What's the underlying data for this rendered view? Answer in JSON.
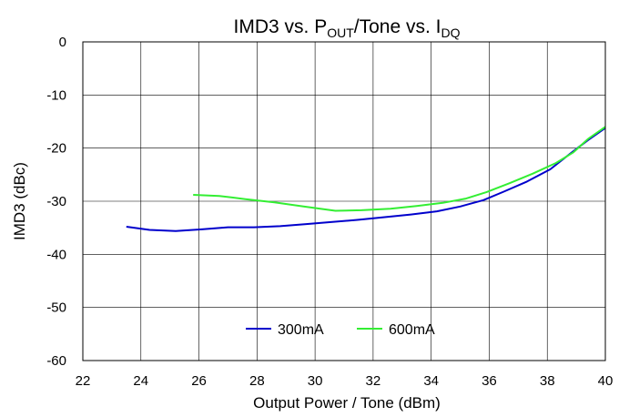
{
  "chart_data": {
    "type": "line",
    "title": {
      "main": "IMD3 vs. P",
      "sub1": "OUT",
      "mid": "/Tone vs. I",
      "sub2": "DQ"
    },
    "xlabel": "Output Power / Tone (dBm)",
    "ylabel": "IMD3 (dBc)",
    "xlim": [
      22,
      40
    ],
    "ylim": [
      -60,
      0
    ],
    "xticks": [
      22,
      24,
      26,
      28,
      30,
      32,
      34,
      36,
      38,
      40
    ],
    "yticks": [
      0,
      -10,
      -20,
      -30,
      -40,
      -50,
      -60
    ],
    "grid": true,
    "legend": "bottom-center",
    "series": [
      {
        "name": "300mA",
        "color": "#0000cc",
        "points": [
          [
            23.5,
            -34.8
          ],
          [
            24.3,
            -35.4
          ],
          [
            25.2,
            -35.6
          ],
          [
            26.1,
            -35.3
          ],
          [
            27.0,
            -34.9
          ],
          [
            27.9,
            -34.9
          ],
          [
            28.8,
            -34.7
          ],
          [
            29.7,
            -34.3
          ],
          [
            30.6,
            -33.9
          ],
          [
            31.5,
            -33.5
          ],
          [
            32.4,
            -33.0
          ],
          [
            33.3,
            -32.5
          ],
          [
            34.2,
            -31.9
          ],
          [
            35.0,
            -31.0
          ],
          [
            35.8,
            -29.8
          ],
          [
            36.5,
            -28.2
          ],
          [
            37.3,
            -26.3
          ],
          [
            38.1,
            -24.0
          ],
          [
            38.8,
            -21.0
          ],
          [
            39.4,
            -18.5
          ],
          [
            40.0,
            -16.2
          ]
        ]
      },
      {
        "name": "600mA",
        "color": "#33ee33",
        "points": [
          [
            25.8,
            -28.8
          ],
          [
            26.7,
            -29.0
          ],
          [
            27.6,
            -29.6
          ],
          [
            28.6,
            -30.2
          ],
          [
            29.6,
            -31.0
          ],
          [
            30.7,
            -31.8
          ],
          [
            31.6,
            -31.7
          ],
          [
            32.6,
            -31.4
          ],
          [
            33.5,
            -30.9
          ],
          [
            34.4,
            -30.3
          ],
          [
            35.2,
            -29.5
          ],
          [
            35.9,
            -28.3
          ],
          [
            36.7,
            -26.6
          ],
          [
            37.5,
            -24.8
          ],
          [
            38.3,
            -22.8
          ],
          [
            38.9,
            -20.8
          ],
          [
            39.4,
            -18.3
          ],
          [
            40.0,
            -16.0
          ]
        ]
      }
    ]
  }
}
